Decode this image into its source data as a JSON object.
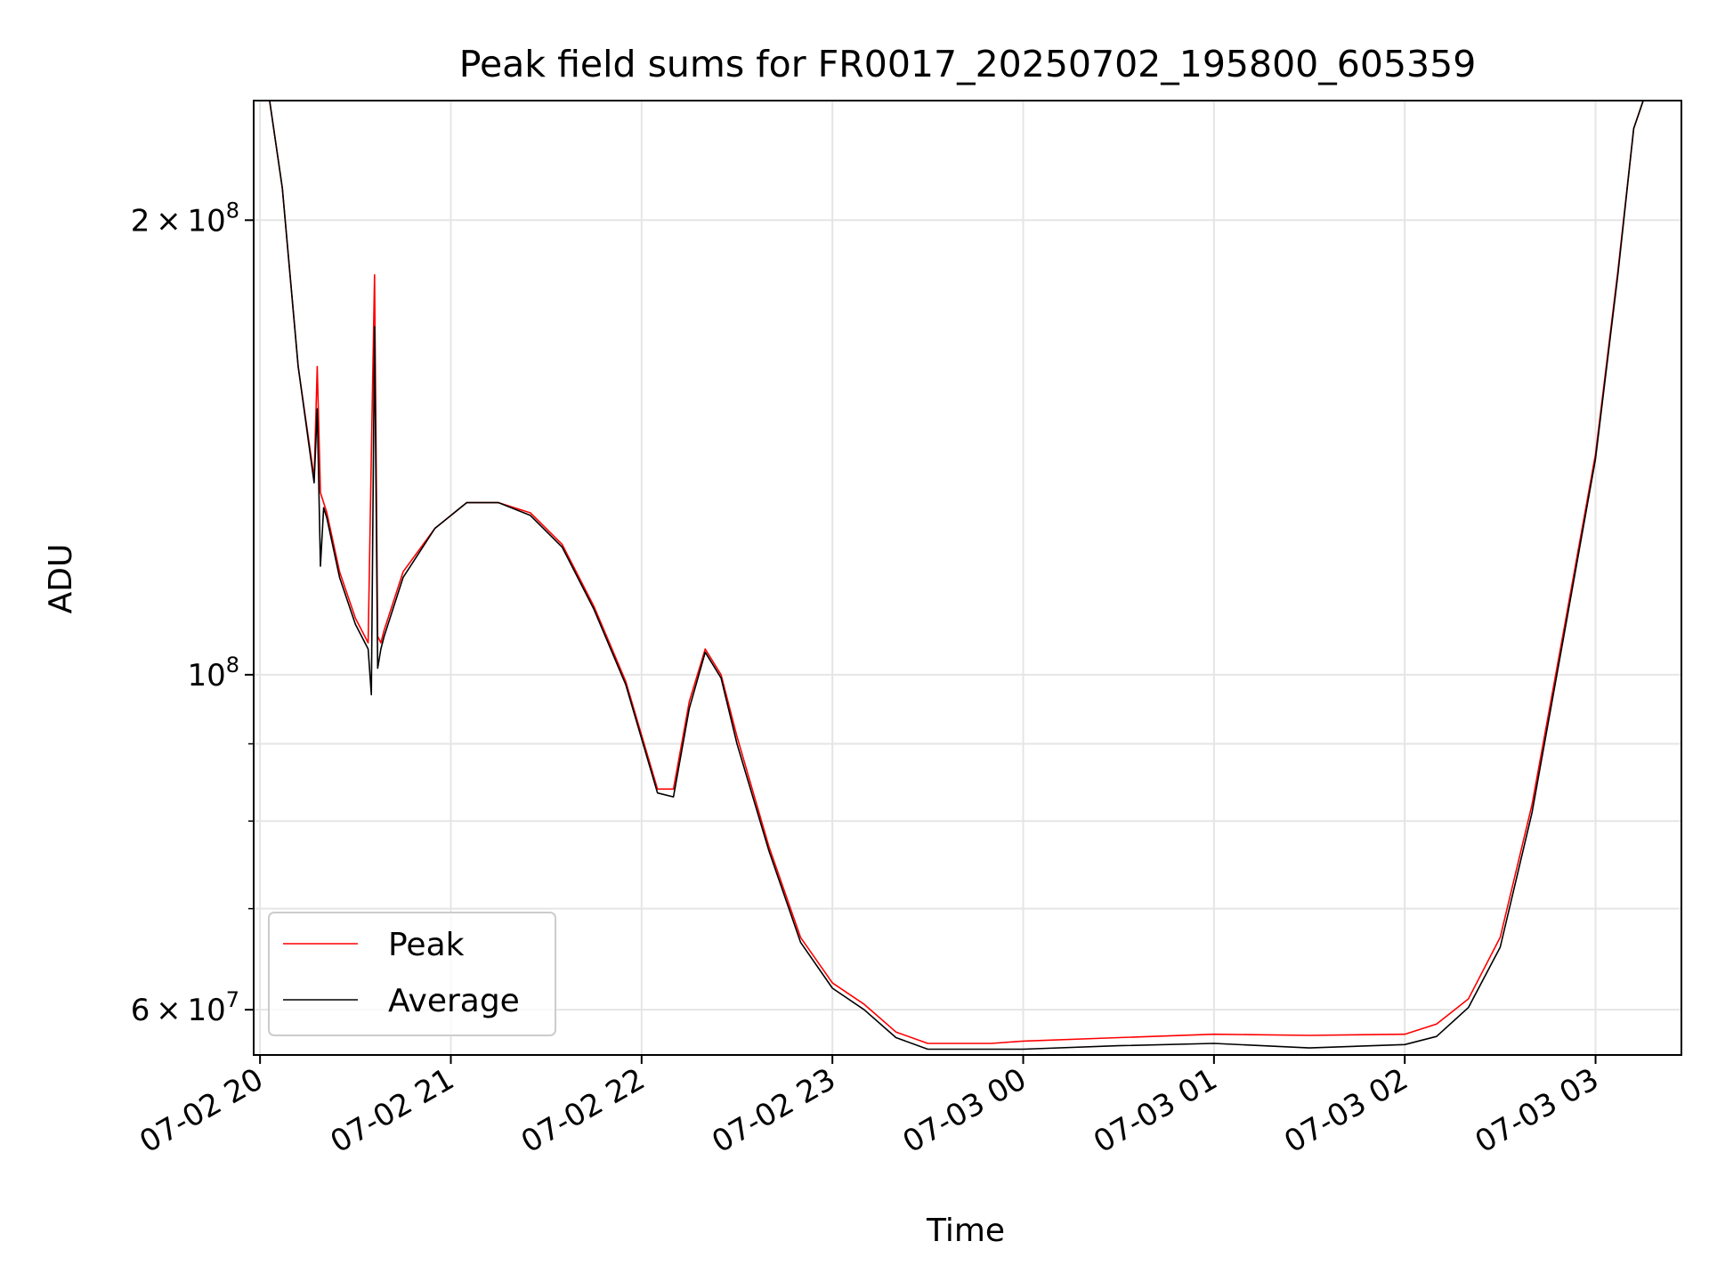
{
  "chart_data": {
    "type": "line",
    "title": "Peak field sums for FR0017_20250702_195800_605359",
    "xlabel": "Time",
    "ylabel": "ADU",
    "x_scale": "time",
    "y_scale": "log",
    "xlim": [
      "2025-07-02 19:58",
      "2025-07-03 03:27"
    ],
    "ylim": [
      56000000,
      240000000
    ],
    "grid": true,
    "legend_position": "lower-left",
    "x_tick_labels": [
      "07-02 20",
      "07-02 21",
      "07-02 22",
      "07-02 23",
      "07-03 00",
      "07-03 01",
      "07-03 02",
      "07-03 03"
    ],
    "x_ticks": [
      "2025-07-02 20:00",
      "2025-07-02 21:00",
      "2025-07-02 22:00",
      "2025-07-02 23:00",
      "2025-07-03 00:00",
      "2025-07-03 01:00",
      "2025-07-03 02:00",
      "2025-07-03 03:00"
    ],
    "y_major_ticks": [
      {
        "value": 60000000,
        "mantissa": "6",
        "base": "10",
        "exponent": "7"
      },
      {
        "value": 100000000,
        "mantissa": "",
        "base": "10",
        "exponent": "8"
      },
      {
        "value": 200000000,
        "mantissa": "2",
        "base": "10",
        "exponent": "8"
      }
    ],
    "y_minor_ticks": [
      70000000,
      80000000,
      90000000
    ],
    "series": [
      {
        "name": "Peak",
        "color": "#ff0000",
        "x": [
          "2025-07-02 19:58",
          "2025-07-02 20:01",
          "2025-07-02 20:03",
          "2025-07-02 20:07",
          "2025-07-02 20:12",
          "2025-07-02 20:17",
          "2025-07-02 20:18",
          "2025-07-02 20:19",
          "2025-07-02 20:20",
          "2025-07-02 20:21",
          "2025-07-02 20:25",
          "2025-07-02 20:30",
          "2025-07-02 20:34",
          "2025-07-02 20:35",
          "2025-07-02 20:36",
          "2025-07-02 20:37",
          "2025-07-02 20:38",
          "2025-07-02 20:39",
          "2025-07-02 20:45",
          "2025-07-02 20:55",
          "2025-07-02 21:05",
          "2025-07-02 21:15",
          "2025-07-02 21:25",
          "2025-07-02 21:35",
          "2025-07-02 21:45",
          "2025-07-02 21:55",
          "2025-07-02 22:05",
          "2025-07-02 22:10",
          "2025-07-02 22:15",
          "2025-07-02 22:20",
          "2025-07-02 22:25",
          "2025-07-02 22:30",
          "2025-07-02 22:40",
          "2025-07-02 22:50",
          "2025-07-02 23:00",
          "2025-07-02 23:10",
          "2025-07-02 23:20",
          "2025-07-02 23:30",
          "2025-07-02 23:40",
          "2025-07-02 23:50",
          "2025-07-03 00:00",
          "2025-07-03 00:30",
          "2025-07-03 01:00",
          "2025-07-03 01:30",
          "2025-07-03 02:00",
          "2025-07-03 02:10",
          "2025-07-03 02:20",
          "2025-07-03 02:30",
          "2025-07-03 02:40",
          "2025-07-03 02:50",
          "2025-07-03 03:00",
          "2025-07-03 03:07",
          "2025-07-03 03:12",
          "2025-07-03 03:15",
          "2025-07-03 03:27"
        ],
        "y": [
          240000000,
          240000000,
          240000000,
          210000000,
          160000000,
          135000000,
          160000000,
          132000000,
          130000000,
          128000000,
          117000000,
          109000000,
          105000000,
          140000000,
          184000000,
          106000000,
          105000000,
          107000000,
          117000000,
          125000000,
          130000000,
          130000000,
          128000000,
          122000000,
          111000000,
          99000000,
          84000000,
          84000000,
          96000000,
          104000000,
          100000000,
          91000000,
          77000000,
          67000000,
          62500000,
          60500000,
          58000000,
          57000000,
          57000000,
          57000000,
          57200000,
          57500000,
          57800000,
          57700000,
          57800000,
          58700000,
          61000000,
          67000000,
          82000000,
          107000000,
          140000000,
          185000000,
          230000000,
          240000000,
          240000000
        ]
      },
      {
        "name": "Average",
        "color": "#000000",
        "x": [
          "2025-07-02 19:58",
          "2025-07-02 20:01",
          "2025-07-02 20:03",
          "2025-07-02 20:07",
          "2025-07-02 20:12",
          "2025-07-02 20:17",
          "2025-07-02 20:18",
          "2025-07-02 20:19",
          "2025-07-02 20:20",
          "2025-07-02 20:21",
          "2025-07-02 20:25",
          "2025-07-02 20:30",
          "2025-07-02 20:34",
          "2025-07-02 20:35",
          "2025-07-02 20:36",
          "2025-07-02 20:37",
          "2025-07-02 20:38",
          "2025-07-02 20:39",
          "2025-07-02 20:45",
          "2025-07-02 20:55",
          "2025-07-02 21:05",
          "2025-07-02 21:15",
          "2025-07-02 21:25",
          "2025-07-02 21:35",
          "2025-07-02 21:45",
          "2025-07-02 21:55",
          "2025-07-02 22:05",
          "2025-07-02 22:10",
          "2025-07-02 22:15",
          "2025-07-02 22:20",
          "2025-07-02 22:25",
          "2025-07-02 22:30",
          "2025-07-02 22:40",
          "2025-07-02 22:50",
          "2025-07-02 23:00",
          "2025-07-02 23:10",
          "2025-07-02 23:20",
          "2025-07-02 23:30",
          "2025-07-02 23:40",
          "2025-07-02 23:50",
          "2025-07-03 00:00",
          "2025-07-03 00:30",
          "2025-07-03 01:00",
          "2025-07-03 01:30",
          "2025-07-03 02:00",
          "2025-07-03 02:10",
          "2025-07-03 02:20",
          "2025-07-03 02:30",
          "2025-07-03 02:40",
          "2025-07-03 02:50",
          "2025-07-03 03:00",
          "2025-07-03 03:07",
          "2025-07-03 03:12",
          "2025-07-03 03:15",
          "2025-07-03 03:27"
        ],
        "y": [
          240000000,
          240000000,
          240000000,
          210000000,
          160000000,
          134000000,
          150000000,
          118000000,
          129000000,
          127000000,
          116000000,
          108000000,
          104000000,
          97000000,
          170000000,
          101000000,
          104000000,
          106000000,
          116000000,
          125000000,
          130000000,
          130000000,
          127500000,
          121500000,
          110500000,
          98500000,
          83500000,
          83000000,
          95000000,
          103500000,
          99500000,
          90000000,
          76500000,
          66500000,
          62000000,
          60000000,
          57500000,
          56500000,
          56500000,
          56500000,
          56500000,
          56800000,
          57000000,
          56600000,
          56900000,
          57600000,
          60200000,
          66000000,
          81000000,
          106000000,
          139000000,
          184000000,
          230000000,
          240000000,
          240000000
        ]
      }
    ]
  }
}
